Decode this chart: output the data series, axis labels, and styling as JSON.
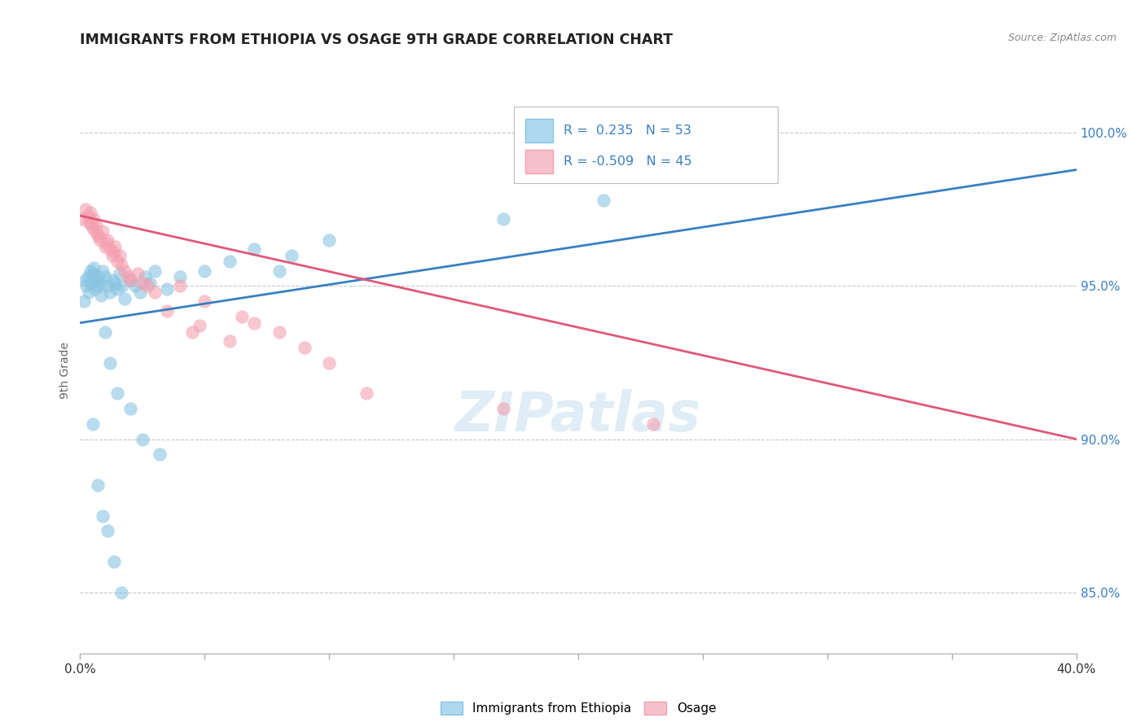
{
  "title": "IMMIGRANTS FROM ETHIOPIA VS OSAGE 9TH GRADE CORRELATION CHART",
  "source": "Source: ZipAtlas.com",
  "ylabel": "9th Grade",
  "xlim": [
    0.0,
    40.0
  ],
  "ylim": [
    83.0,
    101.5
  ],
  "yticks": [
    85.0,
    90.0,
    95.0,
    100.0
  ],
  "ytick_labels": [
    "85.0%",
    "90.0%",
    "95.0%",
    "100.0%"
  ],
  "xtick_positions": [
    0.0,
    5.0,
    10.0,
    15.0,
    20.0,
    25.0,
    30.0,
    35.0,
    40.0
  ],
  "xtick_labels": [
    "0.0%",
    "",
    "",
    "",
    "",
    "",
    "",
    "",
    "40.0%"
  ],
  "blue_R": 0.235,
  "blue_N": 53,
  "pink_R": -0.509,
  "pink_N": 45,
  "blue_color": "#89c4e1",
  "pink_color": "#f4a0b0",
  "blue_line_color": "#3a7fc1",
  "pink_line_color": "#e05878",
  "legend_blue_label": "Immigrants from Ethiopia",
  "legend_pink_label": "Osage",
  "watermark": "ZIPatlas",
  "background_color": "#ffffff",
  "grid_color": "#c8c8c8",
  "blue_x": [
    0.15,
    0.2,
    0.25,
    0.3,
    0.35,
    0.4,
    0.45,
    0.5,
    0.55,
    0.6,
    0.65,
    0.7,
    0.75,
    0.8,
    0.85,
    0.9,
    1.0,
    1.1,
    1.2,
    1.3,
    1.4,
    1.5,
    1.6,
    1.7,
    1.8,
    2.0,
    2.2,
    2.4,
    2.6,
    2.8,
    3.0,
    3.5,
    4.0,
    5.0,
    6.0,
    7.0,
    8.0,
    8.5,
    10.0,
    17.0,
    21.0,
    1.0,
    1.2,
    1.5,
    2.0,
    2.5,
    3.2,
    0.5,
    0.7,
    0.9,
    1.1,
    1.35,
    1.65
  ],
  "blue_y": [
    94.5,
    95.2,
    95.0,
    95.3,
    94.8,
    95.5,
    95.1,
    95.4,
    95.6,
    94.9,
    95.2,
    95.0,
    95.3,
    95.1,
    94.7,
    95.5,
    95.3,
    95.0,
    94.8,
    95.2,
    95.1,
    94.9,
    95.4,
    95.0,
    94.6,
    95.2,
    95.0,
    94.8,
    95.3,
    95.1,
    95.5,
    94.9,
    95.3,
    95.5,
    95.8,
    96.2,
    95.5,
    96.0,
    96.5,
    97.2,
    97.8,
    93.5,
    92.5,
    91.5,
    91.0,
    90.0,
    89.5,
    90.5,
    88.5,
    87.5,
    87.0,
    86.0,
    85.0
  ],
  "pink_x": [
    0.1,
    0.2,
    0.3,
    0.35,
    0.4,
    0.45,
    0.5,
    0.55,
    0.6,
    0.65,
    0.7,
    0.8,
    0.9,
    1.0,
    1.1,
    1.2,
    1.3,
    1.4,
    1.5,
    1.6,
    1.8,
    2.0,
    2.3,
    2.7,
    3.0,
    4.0,
    5.0,
    6.5,
    7.0,
    8.0,
    9.0,
    10.0,
    0.75,
    1.05,
    1.35,
    1.65,
    1.95,
    2.5,
    3.5,
    4.5,
    6.0,
    17.0,
    23.0,
    4.8,
    11.5
  ],
  "pink_y": [
    97.2,
    97.5,
    97.3,
    97.1,
    97.4,
    97.0,
    96.9,
    97.2,
    96.8,
    97.0,
    96.7,
    96.5,
    96.8,
    96.3,
    96.5,
    96.2,
    96.0,
    96.3,
    95.8,
    96.0,
    95.5,
    95.2,
    95.4,
    95.0,
    94.8,
    95.0,
    94.5,
    94.0,
    93.8,
    93.5,
    93.0,
    92.5,
    96.6,
    96.4,
    96.1,
    95.7,
    95.3,
    95.1,
    94.2,
    93.5,
    93.2,
    91.0,
    90.5,
    93.7,
    91.5
  ],
  "blue_line_x0": 0.0,
  "blue_line_x1": 40.0,
  "blue_line_y0": 93.8,
  "blue_line_y1": 98.8,
  "pink_line_x0": 0.0,
  "pink_line_x1": 40.0,
  "pink_line_y0": 97.3,
  "pink_line_y1": 90.0
}
